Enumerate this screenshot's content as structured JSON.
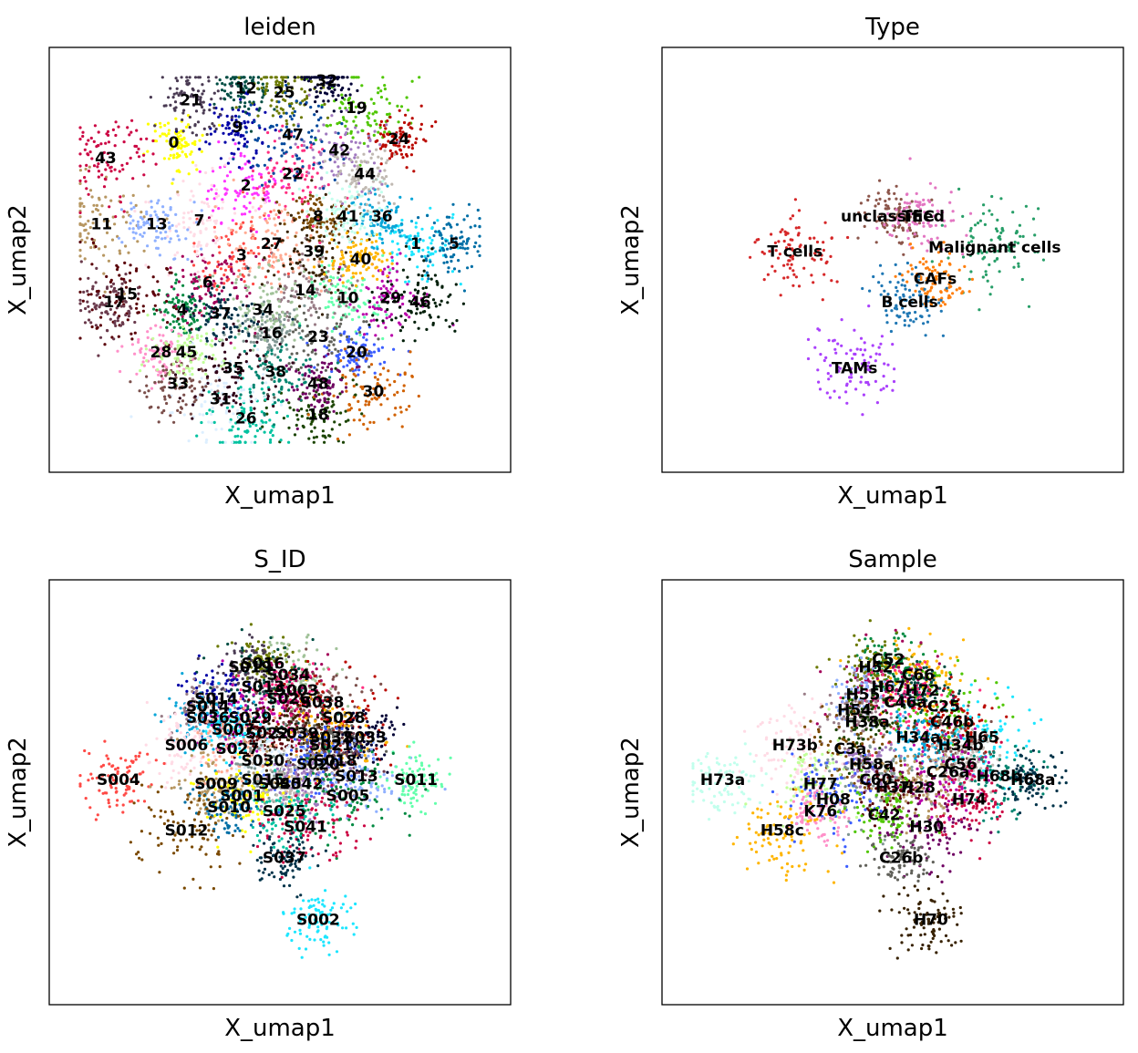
{
  "chart_data": [
    {
      "type": "scatter",
      "title": "leiden",
      "xlabel": "X_umap1",
      "ylabel": "X_umap2",
      "legend": "on data",
      "clusters": [
        {
          "label": "0",
          "x": 2.5,
          "y": 8.0,
          "color": "#ffff00"
        },
        {
          "label": "1",
          "x": 8.2,
          "y": 5.4,
          "color": "#1ce6ff"
        },
        {
          "label": "2",
          "x": 4.2,
          "y": 6.9,
          "color": "#ff34ff"
        },
        {
          "label": "3",
          "x": 4.1,
          "y": 5.1,
          "color": "#ff4a46"
        },
        {
          "label": "4",
          "x": 2.7,
          "y": 3.7,
          "color": "#008941"
        },
        {
          "label": "5",
          "x": 9.1,
          "y": 5.4,
          "color": "#006fa6"
        },
        {
          "label": "6",
          "x": 3.3,
          "y": 4.4,
          "color": "#a30059"
        },
        {
          "label": "7",
          "x": 3.1,
          "y": 6.0,
          "color": "#ffdbe5"
        },
        {
          "label": "8",
          "x": 5.9,
          "y": 6.1,
          "color": "#7a4900"
        },
        {
          "label": "9",
          "x": 4.0,
          "y": 8.4,
          "color": "#0000a6"
        },
        {
          "label": "10",
          "x": 6.6,
          "y": 4.0,
          "color": "#63ffac"
        },
        {
          "label": "11",
          "x": 0.8,
          "y": 5.9,
          "color": "#b79762"
        },
        {
          "label": "12",
          "x": 4.2,
          "y": 9.4,
          "color": "#004d43"
        },
        {
          "label": "13",
          "x": 2.1,
          "y": 5.9,
          "color": "#8fb0ff"
        },
        {
          "label": "14",
          "x": 5.6,
          "y": 4.2,
          "color": "#997d87"
        },
        {
          "label": "15",
          "x": 1.4,
          "y": 4.1,
          "color": "#5a0007"
        },
        {
          "label": "16",
          "x": 4.8,
          "y": 3.1,
          "color": "#809693"
        },
        {
          "label": "17",
          "x": 1.1,
          "y": 3.9,
          "color": "#6a3a4c"
        },
        {
          "label": "18",
          "x": 5.9,
          "y": 1.0,
          "color": "#1b4400"
        },
        {
          "label": "19",
          "x": 6.8,
          "y": 8.9,
          "color": "#4fc601"
        },
        {
          "label": "20",
          "x": 6.8,
          "y": 2.6,
          "color": "#3b5dff"
        },
        {
          "label": "21",
          "x": 2.9,
          "y": 9.1,
          "color": "#4a3b53"
        },
        {
          "label": "22",
          "x": 5.3,
          "y": 7.2,
          "color": "#ff2f80"
        },
        {
          "label": "23",
          "x": 5.9,
          "y": 3.0,
          "color": "#61615a"
        },
        {
          "label": "24",
          "x": 7.8,
          "y": 8.1,
          "color": "#ba0900"
        },
        {
          "label": "25",
          "x": 5.1,
          "y": 9.3,
          "color": "#6b7900"
        },
        {
          "label": "26",
          "x": 4.2,
          "y": 0.9,
          "color": "#00c2a0"
        },
        {
          "label": "27",
          "x": 4.8,
          "y": 5.4,
          "color": "#ffaa92"
        },
        {
          "label": "28",
          "x": 2.2,
          "y": 2.6,
          "color": "#ff90c9"
        },
        {
          "label": "29",
          "x": 7.6,
          "y": 4.0,
          "color": "#b903aa"
        },
        {
          "label": "30",
          "x": 7.2,
          "y": 1.6,
          "color": "#d16100"
        },
        {
          "label": "31",
          "x": 3.6,
          "y": 1.4,
          "color": "#ddefff"
        },
        {
          "label": "32",
          "x": 6.1,
          "y": 9.6,
          "color": "#000035"
        },
        {
          "label": "33",
          "x": 2.6,
          "y": 1.8,
          "color": "#7b4f4b"
        },
        {
          "label": "34",
          "x": 4.6,
          "y": 3.7,
          "color": "#a1c299"
        },
        {
          "label": "35",
          "x": 3.9,
          "y": 2.2,
          "color": "#300018"
        },
        {
          "label": "36",
          "x": 7.4,
          "y": 6.1,
          "color": "#0aa6d8"
        },
        {
          "label": "37",
          "x": 3.6,
          "y": 3.6,
          "color": "#013349"
        },
        {
          "label": "38",
          "x": 4.9,
          "y": 2.1,
          "color": "#00846f"
        },
        {
          "label": "39",
          "x": 5.8,
          "y": 5.2,
          "color": "#372101"
        },
        {
          "label": "40",
          "x": 6.9,
          "y": 5.0,
          "color": "#ffb500"
        },
        {
          "label": "41",
          "x": 6.6,
          "y": 6.1,
          "color": "#c2ffed"
        },
        {
          "label": "42",
          "x": 6.4,
          "y": 7.8,
          "color": "#a079bf"
        },
        {
          "label": "43",
          "x": 0.9,
          "y": 7.6,
          "color": "#cc0744"
        },
        {
          "label": "44",
          "x": 7.0,
          "y": 7.2,
          "color": "#c0b9b2"
        },
        {
          "label": "45",
          "x": 2.8,
          "y": 2.6,
          "color": "#c2ff99"
        },
        {
          "label": "46",
          "x": 8.3,
          "y": 3.9,
          "color": "#001e09"
        },
        {
          "label": "47",
          "x": 5.3,
          "y": 8.2,
          "color": "#00489c"
        },
        {
          "label": "48",
          "x": 5.9,
          "y": 1.8,
          "color": "#6f0062"
        }
      ]
    },
    {
      "type": "scatter",
      "title": "Type",
      "xlabel": "X_umap1",
      "ylabel": "X_umap2",
      "legend": "on data",
      "clusters": [
        {
          "label": "unclassified",
          "x": 5.0,
          "y": 6.1,
          "color": "#8c564b"
        },
        {
          "label": "TEC",
          "x": 5.6,
          "y": 6.1,
          "color": "#e377c2"
        },
        {
          "label": "T cells",
          "x": 2.7,
          "y": 5.2,
          "color": "#d62728"
        },
        {
          "label": "Malignant cells",
          "x": 7.4,
          "y": 5.3,
          "color": "#279e68"
        },
        {
          "label": "CAFs",
          "x": 6.0,
          "y": 4.5,
          "color": "#ff7f0e"
        },
        {
          "label": "B cells",
          "x": 5.4,
          "y": 3.9,
          "color": "#1f77b4"
        },
        {
          "label": "TAMs",
          "x": 4.1,
          "y": 2.2,
          "color": "#aa40fc"
        }
      ]
    },
    {
      "type": "scatter",
      "title": "S_ID",
      "xlabel": "X_umap1",
      "ylabel": "X_umap2",
      "legend": "on data",
      "clusters": [
        {
          "label": "S016",
          "x": 4.6,
          "y": 8.3,
          "color": "#6b7900"
        },
        {
          "label": "S019",
          "x": 4.3,
          "y": 8.2,
          "color": "#4a3b53"
        },
        {
          "label": "S034",
          "x": 5.2,
          "y": 8.0,
          "color": "#a1c299"
        },
        {
          "label": "S013",
          "x": 4.6,
          "y": 7.7,
          "color": "#004d43"
        },
        {
          "label": "S003",
          "x": 5.4,
          "y": 7.6,
          "color": "#a30059"
        },
        {
          "label": "S014",
          "x": 3.5,
          "y": 7.4,
          "color": "#0000a6"
        },
        {
          "label": "S026",
          "x": 5.2,
          "y": 7.4,
          "color": "#ff2f80"
        },
        {
          "label": "S038",
          "x": 6.0,
          "y": 7.3,
          "color": "#7b4f4b"
        },
        {
          "label": "S014",
          "x": 3.3,
          "y": 7.2,
          "color": "#997d87"
        },
        {
          "label": "S036",
          "x": 3.3,
          "y": 6.9,
          "color": "#0aa6d8"
        },
        {
          "label": "S029",
          "x": 4.3,
          "y": 6.9,
          "color": "#b903aa"
        },
        {
          "label": "S028",
          "x": 6.5,
          "y": 6.9,
          "color": "#ba0900"
        },
        {
          "label": "S007",
          "x": 3.9,
          "y": 6.6,
          "color": "#1ce6ff"
        },
        {
          "label": "S022",
          "x": 4.7,
          "y": 6.5,
          "color": "#5a0007"
        },
        {
          "label": "S039",
          "x": 5.4,
          "y": 6.5,
          "color": "#372101"
        },
        {
          "label": "S032",
          "x": 6.2,
          "y": 6.4,
          "color": "#ffb500"
        },
        {
          "label": "S033",
          "x": 7.0,
          "y": 6.4,
          "color": "#000035"
        },
        {
          "label": "S021",
          "x": 6.2,
          "y": 6.2,
          "color": "#61615a"
        },
        {
          "label": "S006",
          "x": 2.8,
          "y": 6.2,
          "color": "#ffdbe5"
        },
        {
          "label": "S027",
          "x": 4.0,
          "y": 6.1,
          "color": "#ffaa92"
        },
        {
          "label": "S030",
          "x": 4.6,
          "y": 5.8,
          "color": "#ddefff"
        },
        {
          "label": "S018",
          "x": 6.3,
          "y": 5.8,
          "color": "#6a3a4c"
        },
        {
          "label": "S020",
          "x": 5.9,
          "y": 5.7,
          "color": "#3b5dff"
        },
        {
          "label": "S013",
          "x": 6.8,
          "y": 5.4,
          "color": "#8fb0ff"
        },
        {
          "label": "S011",
          "x": 8.2,
          "y": 5.3,
          "color": "#63ffac"
        },
        {
          "label": "S004",
          "x": 1.2,
          "y": 5.3,
          "color": "#ff4a46"
        },
        {
          "label": "S009",
          "x": 3.5,
          "y": 5.2,
          "color": "#b79762"
        },
        {
          "label": "S015",
          "x": 4.6,
          "y": 5.3,
          "color": "#809693"
        },
        {
          "label": "S045",
          "x": 5.0,
          "y": 5.2,
          "color": "#c0b9b2"
        },
        {
          "label": "S042",
          "x": 5.5,
          "y": 5.2,
          "color": "#a079bf"
        },
        {
          "label": "S001",
          "x": 4.1,
          "y": 4.9,
          "color": "#ffff00"
        },
        {
          "label": "S005",
          "x": 6.6,
          "y": 4.9,
          "color": "#008941"
        },
        {
          "label": "S010",
          "x": 3.8,
          "y": 4.6,
          "color": "#006fa6"
        },
        {
          "label": "S025",
          "x": 5.1,
          "y": 4.5,
          "color": "#00c2a0"
        },
        {
          "label": "S041",
          "x": 5.6,
          "y": 4.1,
          "color": "#cc0744"
        },
        {
          "label": "S012",
          "x": 2.8,
          "y": 4.0,
          "color": "#7a4900"
        },
        {
          "label": "S037",
          "x": 5.1,
          "y": 3.3,
          "color": "#013349"
        },
        {
          "label": "S002",
          "x": 5.9,
          "y": 1.7,
          "color": "#1ce6ff"
        }
      ]
    },
    {
      "type": "scatter",
      "title": "Sample",
      "xlabel": "X_umap1",
      "ylabel": "X_umap2",
      "legend": "on data",
      "clusters": [
        {
          "label": "C52",
          "x": 4.9,
          "y": 8.4,
          "color": "#008941"
        },
        {
          "label": "H52",
          "x": 4.6,
          "y": 8.2,
          "color": "#6b7900"
        },
        {
          "label": "C66",
          "x": 5.6,
          "y": 8.0,
          "color": "#ffb500"
        },
        {
          "label": "H67",
          "x": 4.9,
          "y": 7.7,
          "color": "#a30059"
        },
        {
          "label": "H72",
          "x": 5.7,
          "y": 7.6,
          "color": "#004d43"
        },
        {
          "label": "H55",
          "x": 4.3,
          "y": 7.5,
          "color": "#8fb0ff"
        },
        {
          "label": "C46a",
          "x": 5.3,
          "y": 7.3,
          "color": "#ff2f80"
        },
        {
          "label": "C25",
          "x": 6.2,
          "y": 7.2,
          "color": "#4fc601"
        },
        {
          "label": "H54",
          "x": 4.1,
          "y": 7.1,
          "color": "#997d87"
        },
        {
          "label": "C46b",
          "x": 6.4,
          "y": 6.8,
          "color": "#ba0900"
        },
        {
          "label": "H38a",
          "x": 4.4,
          "y": 6.8,
          "color": "#1b4400"
        },
        {
          "label": "H65",
          "x": 7.1,
          "y": 6.4,
          "color": "#1ce6ff"
        },
        {
          "label": "H34a",
          "x": 5.6,
          "y": 6.4,
          "color": "#0aa6d8"
        },
        {
          "label": "H34b",
          "x": 6.6,
          "y": 6.2,
          "color": "#7b4f4b"
        },
        {
          "label": "H73b",
          "x": 2.7,
          "y": 6.2,
          "color": "#ffdbe5"
        },
        {
          "label": "C3a",
          "x": 4.0,
          "y": 6.1,
          "color": "#7a4900"
        },
        {
          "label": "H58a",
          "x": 4.5,
          "y": 5.7,
          "color": "#a079bf"
        },
        {
          "label": "C56",
          "x": 6.6,
          "y": 5.7,
          "color": "#c0b9b2"
        },
        {
          "label": "C26a",
          "x": 6.3,
          "y": 5.5,
          "color": "#b903aa"
        },
        {
          "label": "H68b",
          "x": 7.5,
          "y": 5.4,
          "color": "#00846f"
        },
        {
          "label": "H68a",
          "x": 8.3,
          "y": 5.3,
          "color": "#013349"
        },
        {
          "label": "H73a",
          "x": 1.0,
          "y": 5.3,
          "color": "#c2ffed"
        },
        {
          "label": "H77",
          "x": 3.3,
          "y": 5.2,
          "color": "#c2ff99"
        },
        {
          "label": "C60",
          "x": 4.6,
          "y": 5.3,
          "color": "#809693"
        },
        {
          "label": "H37",
          "x": 5.0,
          "y": 5.1,
          "color": "#5a0007"
        },
        {
          "label": "H28",
          "x": 5.6,
          "y": 5.1,
          "color": "#b79762"
        },
        {
          "label": "H74",
          "x": 6.8,
          "y": 4.8,
          "color": "#cc0744"
        },
        {
          "label": "H08",
          "x": 3.6,
          "y": 4.8,
          "color": "#3b5dff"
        },
        {
          "label": "K76",
          "x": 3.3,
          "y": 4.5,
          "color": "#ff90c9"
        },
        {
          "label": "C42",
          "x": 4.8,
          "y": 4.4,
          "color": "#4fc601"
        },
        {
          "label": "H30",
          "x": 5.8,
          "y": 4.1,
          "color": "#6f0062"
        },
        {
          "label": "H58c",
          "x": 2.4,
          "y": 4.0,
          "color": "#ffb500"
        },
        {
          "label": "C26b",
          "x": 5.2,
          "y": 3.3,
          "color": "#61615a"
        },
        {
          "label": "H70",
          "x": 5.9,
          "y": 1.7,
          "color": "#372101"
        }
      ]
    }
  ]
}
